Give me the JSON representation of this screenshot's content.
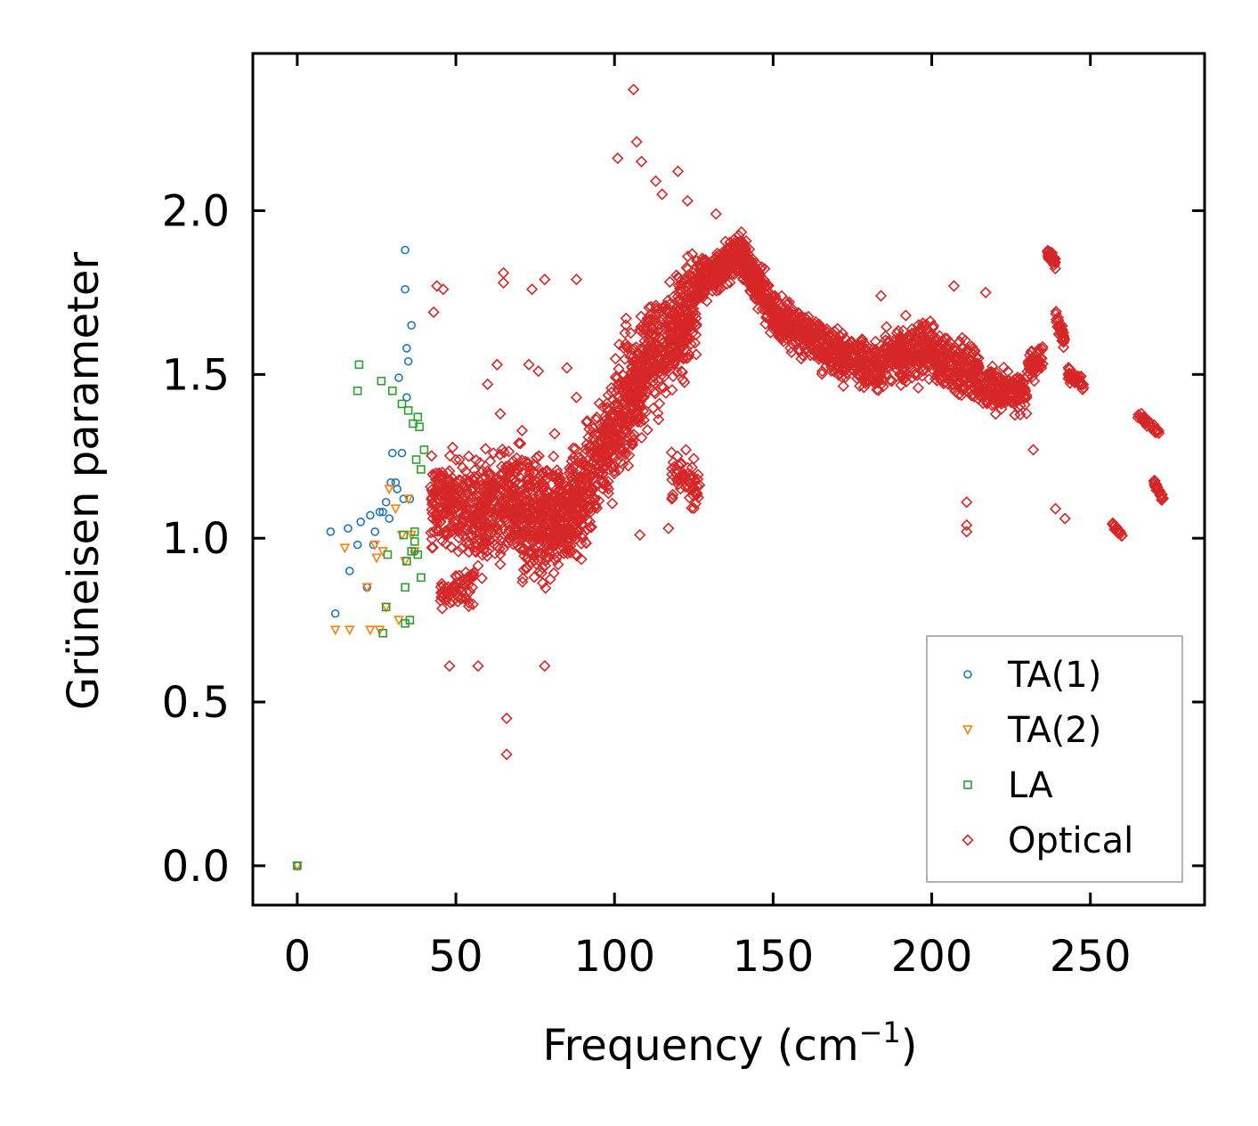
{
  "chart_data": {
    "type": "scatter",
    "xlabel": "Frequency (cm",
    "xlabel_sup": "−1",
    "xlabel_close": ")",
    "ylabel": "Grüneisen parameter",
    "xlim": [
      -14,
      286
    ],
    "ylim": [
      -0.12,
      2.48
    ],
    "x_ticks": [
      0,
      50,
      100,
      150,
      200,
      250
    ],
    "x_tick_labels": [
      "0",
      "50",
      "100",
      "150",
      "200",
      "250"
    ],
    "y_ticks": [
      0.0,
      0.5,
      1.0,
      1.5,
      2.0
    ],
    "y_tick_labels": [
      "0.0",
      "0.5",
      "1.0",
      "1.5",
      "2.0"
    ],
    "legend_position": "lower-right",
    "series": [
      {
        "name": "TA(1)",
        "marker": "circle",
        "color": "#1f77b4",
        "points": [
          [
            0,
            0
          ],
          [
            10.5,
            1.02
          ],
          [
            12,
            0.77
          ],
          [
            16,
            1.03
          ],
          [
            16.5,
            0.9
          ],
          [
            19,
            0.98
          ],
          [
            20,
            1.05
          ],
          [
            22,
            0.85
          ],
          [
            23,
            1.07
          ],
          [
            24,
            0.98
          ],
          [
            24.5,
            1.02
          ],
          [
            26,
            1.08
          ],
          [
            27,
            1.08
          ],
          [
            28,
            1.11
          ],
          [
            29,
            1.06
          ],
          [
            29.5,
            1.17
          ],
          [
            30,
            1.26
          ],
          [
            31,
            1.17
          ],
          [
            31.5,
            1.15
          ],
          [
            32,
            1.49
          ],
          [
            33,
            1.26
          ],
          [
            33.5,
            1.12
          ],
          [
            34,
            1.76
          ],
          [
            34,
            1.88
          ],
          [
            34.5,
            1.58
          ],
          [
            34.5,
            1.43
          ],
          [
            35,
            1.54
          ],
          [
            35.5,
            1.12
          ],
          [
            36,
            1.65
          ],
          [
            37,
            0.96
          ]
        ]
      },
      {
        "name": "TA(2)",
        "marker": "triangle-down",
        "color": "#ff7f0e",
        "points": [
          [
            0,
            0
          ],
          [
            12,
            0.72
          ],
          [
            15,
            0.97
          ],
          [
            16.5,
            0.72
          ],
          [
            22,
            0.85
          ],
          [
            23,
            0.72
          ],
          [
            24.5,
            0.98
          ],
          [
            25,
            0.94
          ],
          [
            26,
            0.72
          ],
          [
            27,
            0.96
          ],
          [
            28,
            0.79
          ],
          [
            29,
            1.15
          ],
          [
            31,
            1.09
          ],
          [
            32,
            0.75
          ],
          [
            33,
            1.01
          ],
          [
            34,
            0.93
          ],
          [
            35,
            1.12
          ],
          [
            36,
            1.01
          ],
          [
            37,
            0.96
          ]
        ]
      },
      {
        "name": "LA",
        "marker": "square",
        "color": "#2ca02c",
        "points": [
          [
            0,
            0
          ],
          [
            19,
            1.45
          ],
          [
            19.5,
            1.53
          ],
          [
            26.5,
            1.48
          ],
          [
            27,
            0.71
          ],
          [
            28,
            0.79
          ],
          [
            28.5,
            0.95
          ],
          [
            30,
            1.45
          ],
          [
            33,
            1.41
          ],
          [
            33.5,
            1.01
          ],
          [
            34,
            0.85
          ],
          [
            34,
            0.74
          ],
          [
            34.5,
            0.93
          ],
          [
            35,
            1.39
          ],
          [
            35.5,
            0.75
          ],
          [
            36,
            0.96
          ],
          [
            36.5,
            1.35
          ],
          [
            37,
            0.99
          ],
          [
            37,
            1.02
          ],
          [
            37.5,
            1.24
          ],
          [
            38,
            1.37
          ],
          [
            38,
            0.95
          ],
          [
            38.5,
            1.34
          ],
          [
            39,
            0.88
          ],
          [
            39,
            1.21
          ],
          [
            40,
            1.27
          ]
        ]
      },
      {
        "name": "Optical",
        "marker": "diamond",
        "color": "#d62728",
        "outliers": [
          [
            106,
            2.37
          ],
          [
            107,
            2.21
          ],
          [
            101,
            2.16
          ],
          [
            108.5,
            2.15
          ],
          [
            120,
            2.12
          ],
          [
            113,
            2.09
          ],
          [
            115,
            2.05
          ],
          [
            123,
            2.03
          ],
          [
            66,
            0.45
          ],
          [
            66,
            0.34
          ],
          [
            44,
            1.77
          ],
          [
            65,
            1.81
          ],
          [
            65,
            1.78
          ],
          [
            78,
            1.79
          ],
          [
            74,
            1.76
          ],
          [
            88,
            1.79
          ],
          [
            132,
            1.99
          ],
          [
            184,
            1.74
          ],
          [
            207,
            1.77
          ],
          [
            217,
            1.75
          ],
          [
            211,
            1.11
          ],
          [
            211,
            1.04
          ],
          [
            211,
            1.02
          ],
          [
            232,
            1.27
          ],
          [
            239,
            1.09
          ],
          [
            242,
            1.06
          ],
          [
            78,
            0.61
          ],
          [
            57,
            0.61
          ],
          [
            48,
            0.61
          ],
          [
            117,
            1.03
          ],
          [
            108,
            1.01
          ],
          [
            63,
            1.53
          ],
          [
            73,
            1.53
          ],
          [
            76,
            1.51
          ],
          [
            85,
            1.52
          ],
          [
            60,
            1.47
          ],
          [
            43,
            1.69
          ],
          [
            46,
            1.76
          ],
          [
            64,
            1.38
          ],
          [
            88,
            1.43
          ]
        ],
        "clusters": [
          {
            "x": [
              42,
              56
            ],
            "y_center": [
              1.12,
              1.08
            ],
            "y_spread": 0.26,
            "n": 220
          },
          {
            "x": [
              45,
              56
            ],
            "y_center": [
              0.82,
              0.86
            ],
            "y_spread": 0.1,
            "n": 60
          },
          {
            "x": [
              56,
              70
            ],
            "y_center": [
              1.08,
              1.12
            ],
            "y_spread": 0.3,
            "n": 300
          },
          {
            "x": [
              70,
              85
            ],
            "y_center": [
              1.08,
              1.05
            ],
            "y_spread": 0.34,
            "n": 350
          },
          {
            "x": [
              85,
              98
            ],
            "y_center": [
              1.05,
              1.3
            ],
            "y_spread": 0.32,
            "n": 300
          },
          {
            "x": [
              98,
              112
            ],
            "y_center": [
              1.3,
              1.58
            ],
            "y_spread": 0.36,
            "n": 320
          },
          {
            "x": [
              112,
              126
            ],
            "y_center": [
              1.55,
              1.72
            ],
            "y_spread": 0.32,
            "n": 300
          },
          {
            "x": [
              118,
              127
            ],
            "y_center": [
              1.2,
              1.15
            ],
            "y_spread": 0.14,
            "n": 60
          },
          {
            "x": [
              126,
              140
            ],
            "y_center": [
              1.78,
              1.87
            ],
            "y_spread": 0.12,
            "n": 260
          },
          {
            "x": [
              140,
              150
            ],
            "y_center": [
              1.85,
              1.7
            ],
            "y_spread": 0.14,
            "n": 200
          },
          {
            "x": [
              150,
              165
            ],
            "y_center": [
              1.68,
              1.6
            ],
            "y_spread": 0.13,
            "n": 220
          },
          {
            "x": [
              165,
              185
            ],
            "y_center": [
              1.58,
              1.52
            ],
            "y_spread": 0.13,
            "n": 260
          },
          {
            "x": [
              185,
              200
            ],
            "y_center": [
              1.55,
              1.58
            ],
            "y_spread": 0.17,
            "n": 240
          },
          {
            "x": [
              200,
              215
            ],
            "y_center": [
              1.56,
              1.5
            ],
            "y_spread": 0.17,
            "n": 220
          },
          {
            "x": [
              215,
              230
            ],
            "y_center": [
              1.47,
              1.44
            ],
            "y_spread": 0.13,
            "n": 160
          },
          {
            "x": [
              230,
              235
            ],
            "y_center": [
              1.52,
              1.55
            ],
            "y_spread": 0.08,
            "n": 50
          },
          {
            "x": [
              236.5,
              239
            ],
            "y_center": [
              1.87,
              1.84
            ],
            "y_spread": 0.03,
            "n": 40
          },
          {
            "x": [
              239,
              242
            ],
            "y_center": [
              1.68,
              1.6
            ],
            "y_spread": 0.06,
            "n": 35
          },
          {
            "x": [
              243,
              248
            ],
            "y_center": [
              1.5,
              1.47
            ],
            "y_spread": 0.05,
            "n": 40
          },
          {
            "x": [
              257,
              260
            ],
            "y_center": [
              1.04,
              1.01
            ],
            "y_spread": 0.015,
            "n": 18
          },
          {
            "x": [
              265,
              272
            ],
            "y_center": [
              1.38,
              1.32
            ],
            "y_spread": 0.03,
            "n": 30
          },
          {
            "x": [
              270,
              273
            ],
            "y_center": [
              1.17,
              1.12
            ],
            "y_spread": 0.025,
            "n": 24
          }
        ]
      }
    ]
  }
}
